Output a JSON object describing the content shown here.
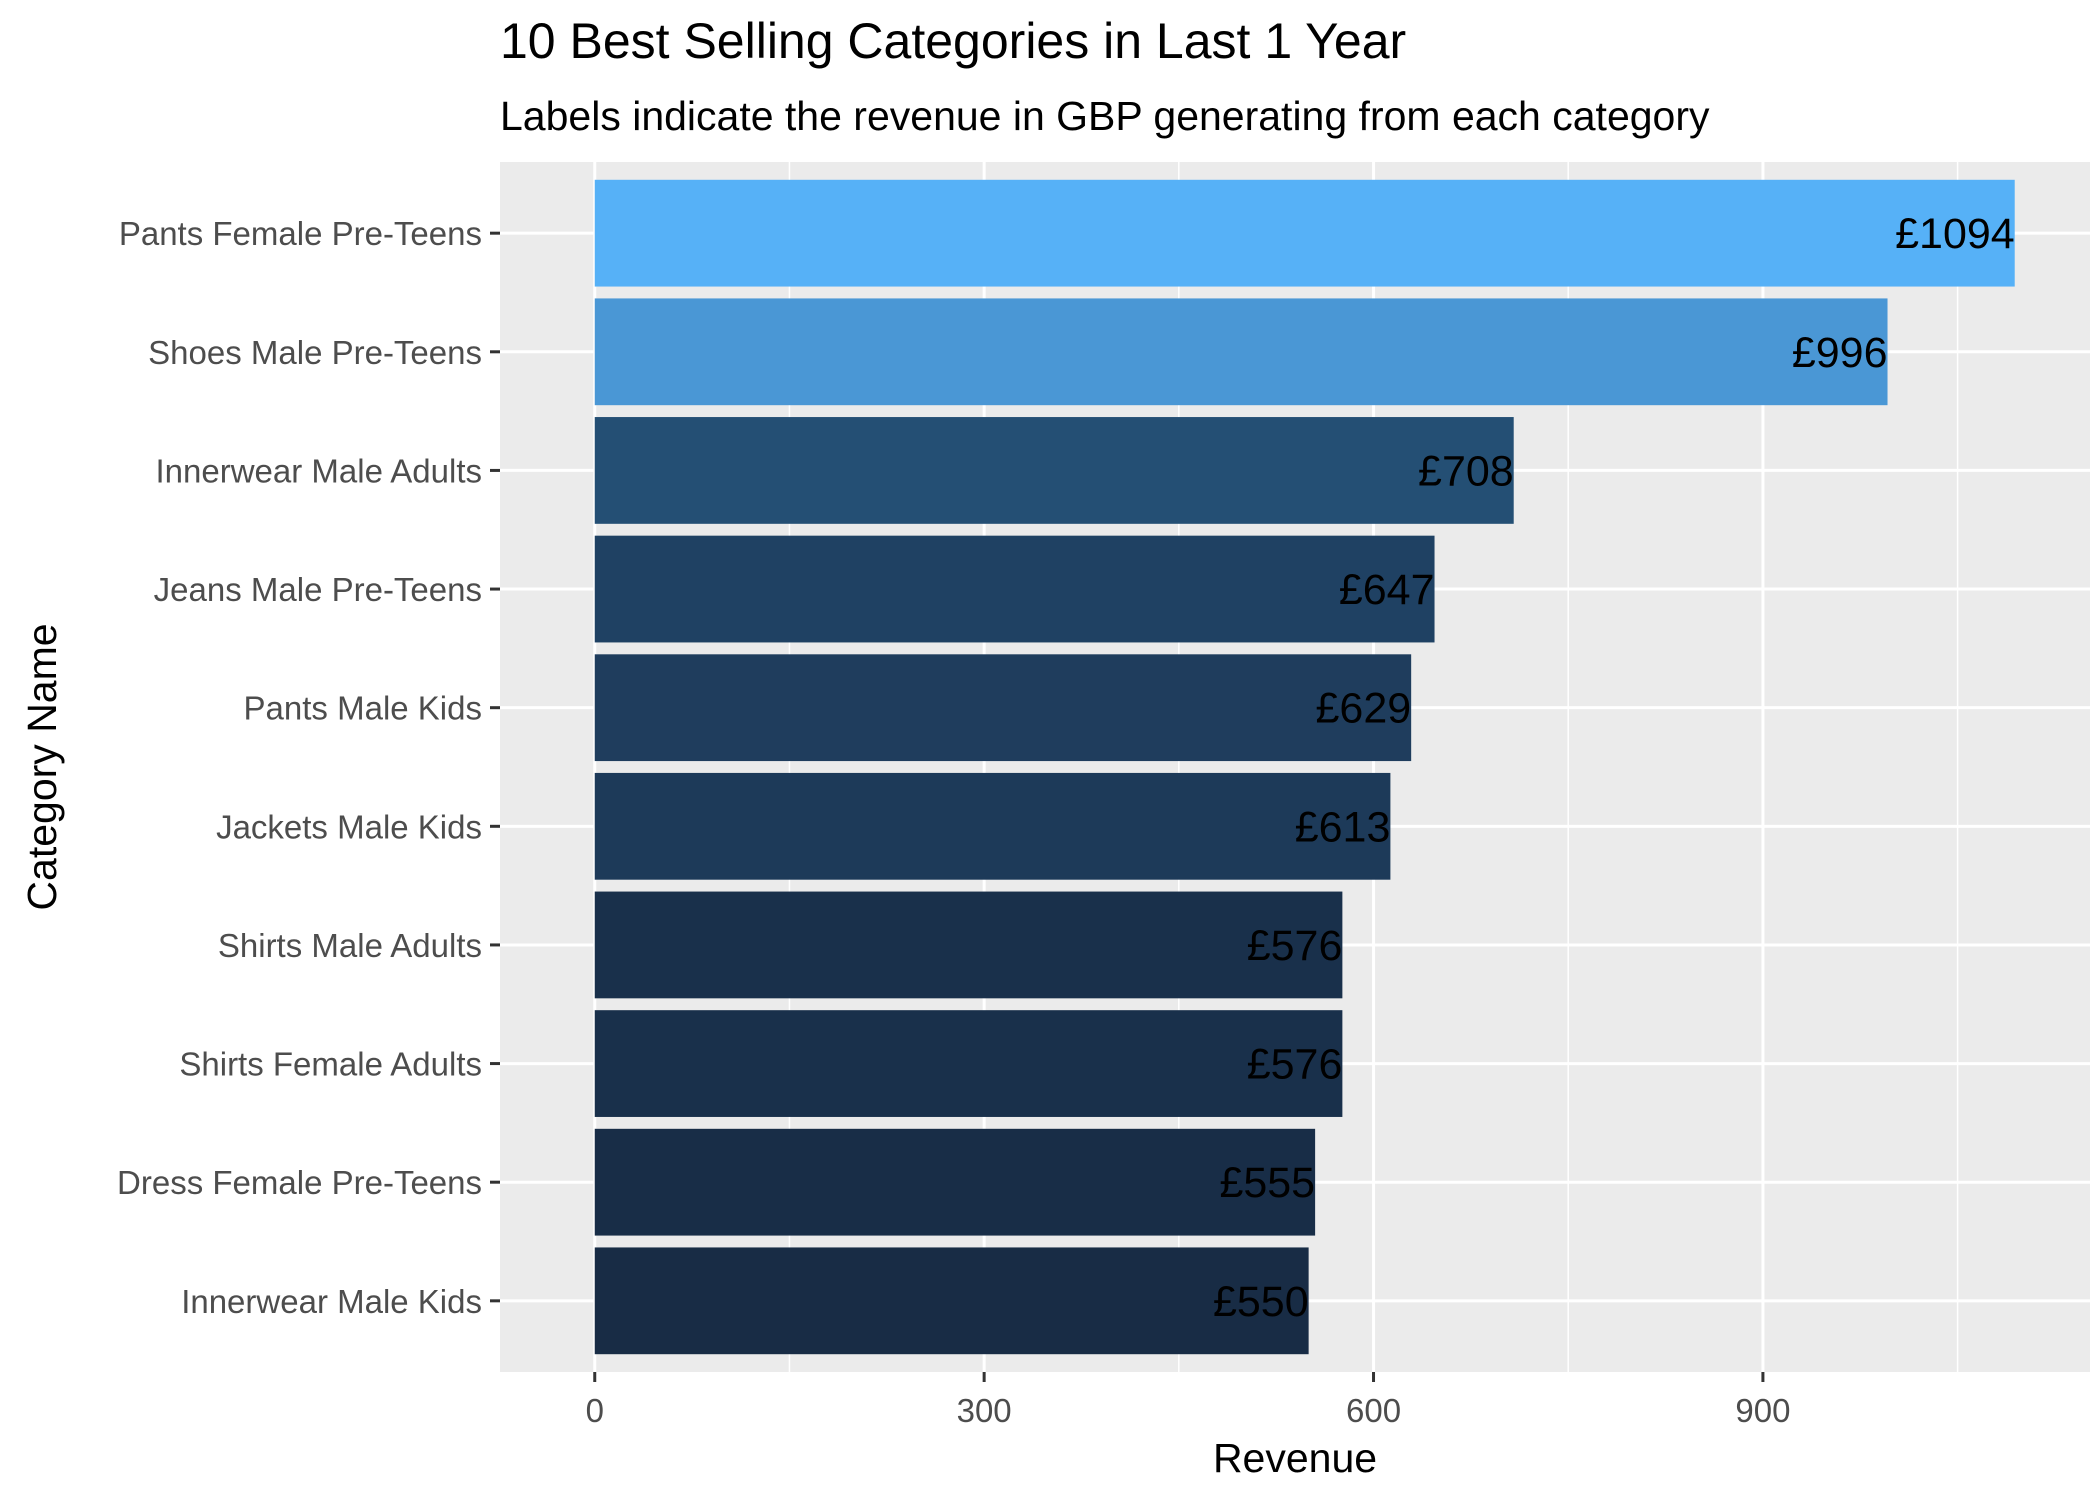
{
  "chart_data": {
    "type": "bar",
    "orientation": "horizontal",
    "title": "10 Best Selling Categories in Last 1 Year",
    "subtitle": "Labels indicate the revenue in GBP generating from each category",
    "xlabel": "Revenue",
    "ylabel": "Category Name",
    "xlim": [
      -73,
      1152
    ],
    "x_ticks": [
      0,
      300,
      600,
      900
    ],
    "x_minor_ticks": [
      150,
      450,
      750,
      1050
    ],
    "grid": true,
    "legend": "none",
    "label_prefix": "£",
    "categories": [
      "Pants Female Pre-Teens",
      "Shoes Male Pre-Teens",
      "Innerwear Male Adults",
      "Jeans Male Pre-Teens",
      "Pants Male Kids",
      "Jackets Male Kids",
      "Shirts Male Adults",
      "Shirts Female Adults",
      "Dress Female Pre-Teens",
      "Innerwear Male Kids"
    ],
    "values": [
      1094,
      996,
      708,
      647,
      629,
      613,
      576,
      576,
      555,
      550
    ],
    "colors": [
      "#56B1F7",
      "#4A97D5",
      "#244F74",
      "#1F4163",
      "#1F3D5D",
      "#1D3A59",
      "#19304B",
      "#19304B",
      "#182D47",
      "#182C45"
    ],
    "panel_background": "#EBEBEB",
    "grid_color": "#FFFFFF",
    "text_color": "#000000",
    "tick_color": "#4D4D4D"
  }
}
